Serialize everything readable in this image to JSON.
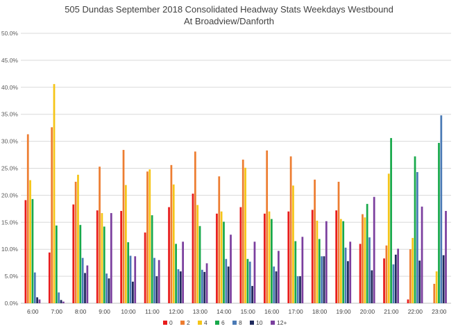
{
  "chart_data": {
    "type": "bar",
    "title": "505 Dundas   September 2018  Consolidated Headway Stats Weekdays Westbound",
    "subtitle": "At Broadview/Danforth",
    "xlabel": "",
    "ylabel": "",
    "ylim": [
      0,
      50
    ],
    "yticks": [
      "0.0%",
      "5.0%",
      "10.0%",
      "15.0%",
      "20.0%",
      "25.0%",
      "30.0%",
      "35.0%",
      "40.0%",
      "45.0%",
      "50.0%"
    ],
    "grid": true,
    "legend_position": "bottom",
    "categories": [
      "6:00",
      "7:00",
      "8:00",
      "9:00",
      "10:00",
      "11:00",
      "12:00",
      "13:00",
      "14:00",
      "15:00",
      "16:00",
      "17:00",
      "18:00",
      "19:00",
      "20:00",
      "21:00",
      "22:00",
      "23:00"
    ],
    "series": [
      {
        "name": "0",
        "color": "#e81c1c",
        "values": [
          19.1,
          9.4,
          18.3,
          17.2,
          17.1,
          13.1,
          17.8,
          20.3,
          16.6,
          17.8,
          16.6,
          17.0,
          17.3,
          17.2,
          11.0,
          8.3,
          0.7,
          0.0
        ]
      },
      {
        "name": "2",
        "color": "#ed7d31",
        "values": [
          31.3,
          32.6,
          22.5,
          25.3,
          28.4,
          24.4,
          25.6,
          28.1,
          23.5,
          26.6,
          28.3,
          27.2,
          22.9,
          22.5,
          16.5,
          10.7,
          10.0,
          3.6
        ]
      },
      {
        "name": "4",
        "color": "#f5c518",
        "values": [
          22.8,
          40.6,
          23.8,
          16.7,
          21.9,
          24.8,
          22.0,
          18.2,
          17.0,
          25.1,
          17.0,
          21.8,
          15.3,
          15.6,
          15.9,
          24.0,
          12.1,
          5.9
        ]
      },
      {
        "name": "6",
        "color": "#18a94b",
        "values": [
          19.3,
          14.4,
          14.5,
          14.2,
          11.3,
          16.3,
          11.0,
          14.3,
          15.1,
          8.2,
          15.6,
          11.5,
          11.9,
          15.2,
          18.4,
          30.6,
          27.2,
          29.7
        ]
      },
      {
        "name": "8",
        "color": "#4a7ab5",
        "values": [
          5.7,
          2.0,
          8.4,
          5.5,
          8.8,
          8.4,
          6.3,
          6.2,
          8.2,
          7.7,
          6.8,
          5.0,
          8.7,
          10.3,
          12.2,
          7.2,
          24.3,
          34.8
        ]
      },
      {
        "name": "10",
        "color": "#1f2a5c",
        "values": [
          1.1,
          0.6,
          5.6,
          4.6,
          4.0,
          5.0,
          5.9,
          5.8,
          6.8,
          3.2,
          5.9,
          5.0,
          8.7,
          7.8,
          6.1,
          9.0,
          7.9,
          8.9
        ]
      },
      {
        "name": "12+",
        "color": "#7b3f9e",
        "values": [
          0.7,
          0.3,
          7.0,
          16.7,
          8.7,
          8.0,
          11.4,
          7.4,
          12.7,
          11.4,
          9.7,
          12.3,
          15.2,
          11.4,
          19.7,
          10.1,
          17.9,
          17.1
        ]
      }
    ]
  }
}
